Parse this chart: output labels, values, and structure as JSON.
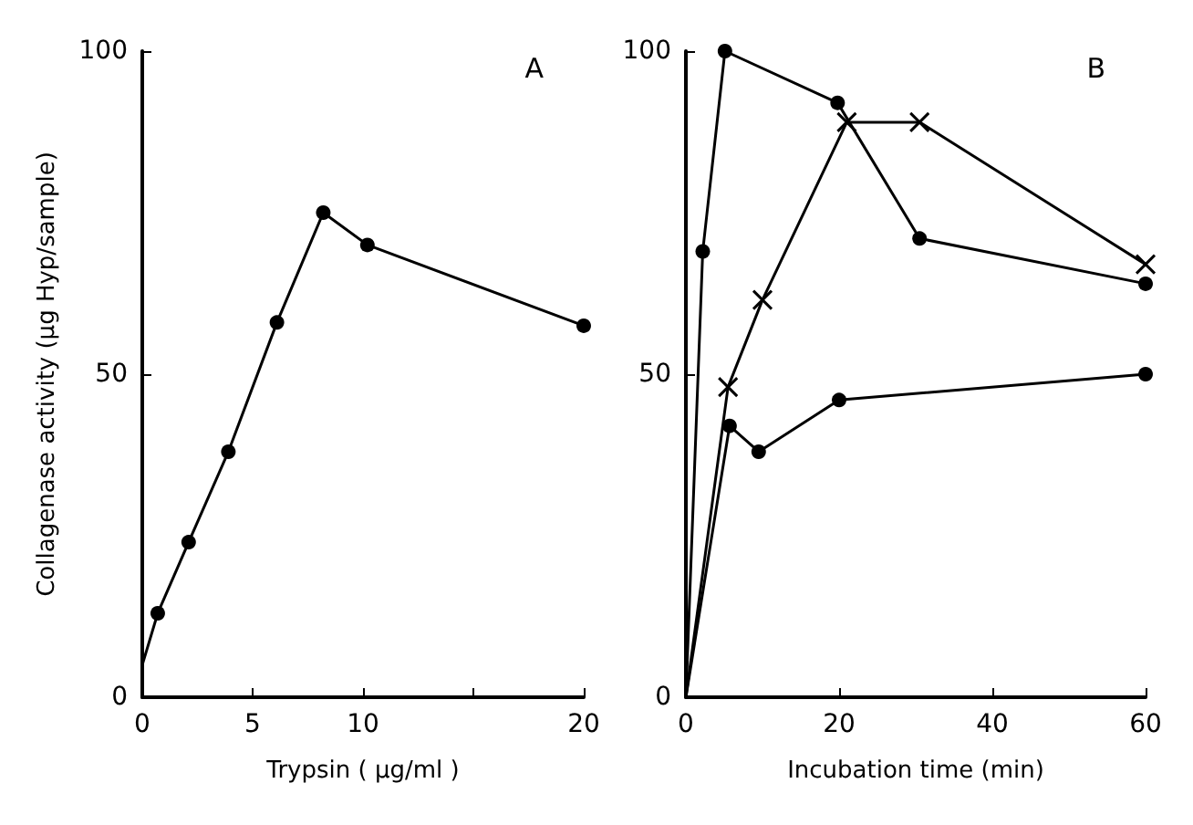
{
  "chart_data": [
    {
      "type": "line",
      "ylabel": "Collagenase activity (µg Hyp/sample)",
      "xlabel": "Trypsin ( µg/ml )",
      "annotations": [
        "A"
      ],
      "x": [
        0,
        0.7,
        2.1,
        3.9,
        6.1,
        8.2,
        10.2,
        20
      ],
      "series": [
        {
          "color": "#000000",
          "marker": "circle",
          "values": [
            5,
            13,
            24,
            38,
            58,
            75,
            70,
            57.5
          ]
        }
      ],
      "xlim": [
        0,
        20
      ],
      "xticks": [
        0,
        5,
        10,
        {
          "value": 15,
          "label": null
        },
        20
      ],
      "ylim": [
        0,
        100
      ],
      "yticks": [
        0,
        50,
        100
      ],
      "grid": false
    },
    {
      "type": "line",
      "xlabel": "Incubation time (min)",
      "annotations": [
        "B"
      ],
      "series": [
        {
          "color": "#000000",
          "marker": "circle",
          "x": [
            0,
            2.2,
            5.1,
            19.8,
            30.5,
            60
          ],
          "values": [
            0,
            69,
            100,
            92,
            71,
            64
          ]
        },
        {
          "color": "#000000",
          "marker": "cross",
          "x": [
            0,
            5.5,
            10,
            21,
            30.5,
            60
          ],
          "values": [
            0,
            48,
            61.5,
            89,
            89,
            67
          ]
        },
        {
          "color": "#000000",
          "marker": "circle",
          "x": [
            0,
            5.7,
            9.5,
            20,
            60
          ],
          "values": [
            0,
            42,
            38,
            46,
            50
          ]
        }
      ],
      "xlim": [
        0,
        60
      ],
      "xticks": [
        0,
        20,
        40,
        60
      ],
      "ylim": [
        0,
        100
      ],
      "yticks": [
        0,
        50,
        100
      ],
      "grid": false
    }
  ]
}
